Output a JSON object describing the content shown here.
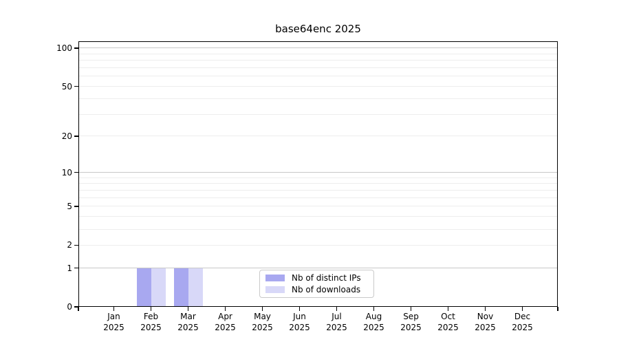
{
  "title": "base64enc 2025",
  "colors": {
    "background": "#ffffff",
    "axis": "#000000",
    "grid_major": "#c8c8c8",
    "grid_minor": "#ededed",
    "legend_border": "#c9c9c9",
    "distinct_ips": "#a8a8f0",
    "downloads": "#d8d8f8"
  },
  "chart_data": {
    "type": "bar",
    "title": "base64enc 2025",
    "categories": [
      "Jan 2025",
      "Feb 2025",
      "Mar 2025",
      "Apr 2025",
      "May 2025",
      "Jun 2025",
      "Jul 2025",
      "Aug 2025",
      "Sep 2025",
      "Oct 2025",
      "Nov 2025",
      "Dec 2025"
    ],
    "series": [
      {
        "name": "Nb of distinct IPs",
        "color": "#a8a8f0",
        "values": [
          0,
          1,
          1,
          0,
          0,
          0,
          0,
          0,
          0,
          0,
          0,
          0
        ]
      },
      {
        "name": "Nb of downloads",
        "color": "#d8d8f8",
        "values": [
          0,
          1,
          1,
          0,
          0,
          0,
          0,
          0,
          0,
          0,
          0,
          0
        ]
      }
    ],
    "yscale": "log1p",
    "ylim": [
      0,
      113
    ],
    "yticks": [
      0,
      1,
      2,
      5,
      10,
      20,
      50,
      100
    ],
    "gridlines": {
      "major": [
        1,
        10,
        100
      ],
      "minor": [
        2,
        3,
        4,
        5,
        6,
        7,
        8,
        9,
        20,
        30,
        40,
        50,
        60,
        70,
        80,
        90
      ]
    },
    "grid": true,
    "xlabel": "",
    "ylabel": "",
    "legend_position": "bottom-center"
  }
}
